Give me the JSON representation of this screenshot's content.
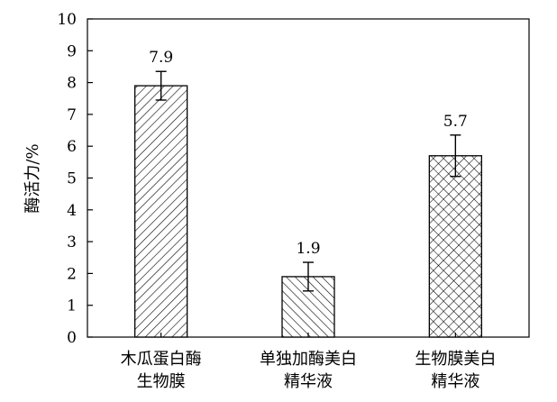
{
  "chart_data": {
    "type": "bar",
    "categories": [
      [
        "木瓜蛋白酶",
        "生物膜"
      ],
      [
        "单独加酶美白",
        "精华液"
      ],
      [
        "生物膜美白",
        "精华液"
      ]
    ],
    "values": [
      7.9,
      1.9,
      5.7
    ],
    "error": [
      0.45,
      0.45,
      0.65
    ],
    "data_labels": [
      "7.9",
      "1.9",
      "5.7"
    ],
    "patterns": [
      "diagonal-forward",
      "diagonal-backward",
      "crosshatch"
    ],
    "title": "",
    "xlabel": "",
    "ylabel": "酶活力/%",
    "ylim": [
      0,
      10
    ],
    "yticks": [
      "0",
      "1",
      "2",
      "3",
      "4",
      "5",
      "6",
      "7",
      "8",
      "9",
      "10"
    ],
    "grid": false,
    "legend": "none",
    "colors": {
      "bar_fill": "#ffffff",
      "bar_stroke": "#000000",
      "hatch": "#000000"
    }
  }
}
